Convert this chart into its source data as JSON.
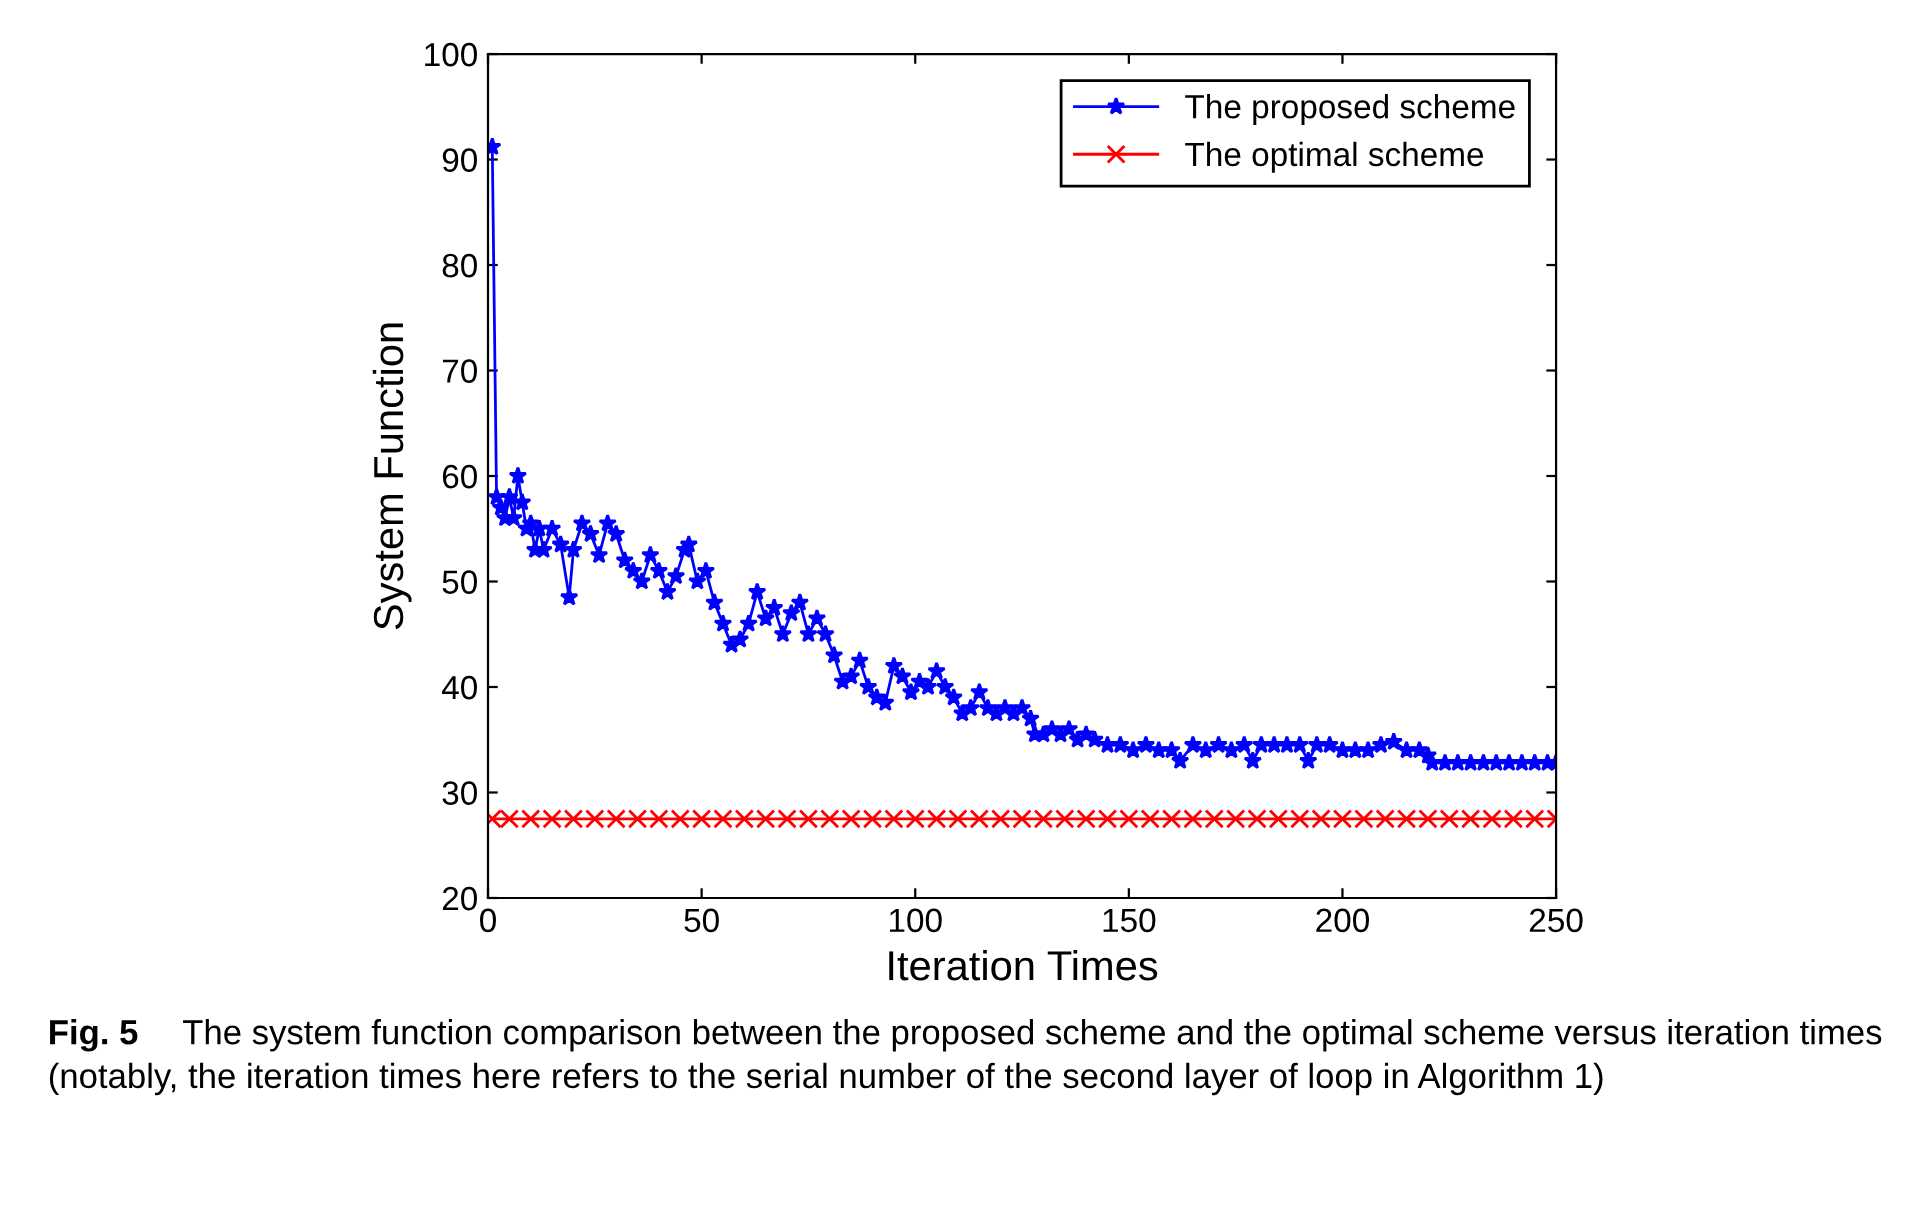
{
  "chart_data": {
    "type": "line",
    "xlabel": "Iteration Times",
    "ylabel": "System Function",
    "xlim": [
      0,
      250
    ],
    "ylim": [
      20,
      100
    ],
    "xticks": [
      0,
      50,
      100,
      150,
      200,
      250
    ],
    "yticks": [
      20,
      30,
      40,
      50,
      60,
      70,
      80,
      90,
      100
    ],
    "grid": false,
    "legend": "top right",
    "annotations": [
      "Fig. 5",
      "The system function comparison between the proposed scheme and the optimal scheme versus iteration times (notably, the iteration times here refers to the serial number of the second layer of loop in Algorithm 1)"
    ],
    "series": [
      {
        "name": "The proposed scheme",
        "color": "#0000ff",
        "marker": "star",
        "x": [
          1,
          2,
          3,
          4,
          5,
          6,
          7,
          8,
          9,
          10,
          11,
          12,
          13,
          15,
          17,
          19,
          20,
          22,
          24,
          26,
          28,
          30,
          32,
          34,
          36,
          38,
          40,
          42,
          44,
          46,
          47,
          49,
          51,
          53,
          55,
          57,
          59,
          61,
          63,
          65,
          67,
          69,
          71,
          73,
          75,
          77,
          79,
          81,
          83,
          85,
          87,
          89,
          91,
          93,
          95,
          97,
          99,
          101,
          103,
          105,
          107,
          109,
          111,
          113,
          115,
          117,
          119,
          121,
          123,
          125,
          127,
          128,
          130,
          132,
          134,
          136,
          138,
          140,
          142,
          145,
          148,
          151,
          154,
          157,
          160,
          162,
          165,
          168,
          171,
          174,
          177,
          179,
          181,
          184,
          187,
          190,
          192,
          194,
          197,
          200,
          203,
          206,
          209,
          212,
          215,
          218,
          220,
          221,
          224,
          227,
          230,
          233,
          236,
          239,
          242,
          245,
          248,
          250
        ],
        "values": [
          91.2,
          58,
          57,
          56,
          58,
          56,
          60,
          57.5,
          55,
          55.5,
          53,
          55,
          53,
          55,
          53.5,
          48.5,
          53,
          55.5,
          54.5,
          52.5,
          55.5,
          54.5,
          52,
          51,
          50,
          52.5,
          51,
          49,
          50.5,
          53,
          53.5,
          50,
          51,
          48,
          46,
          44,
          44.5,
          46,
          49,
          46.5,
          47.5,
          45,
          47,
          48,
          45,
          46.5,
          45,
          43,
          40.5,
          41,
          42.5,
          40,
          39,
          38.5,
          42,
          41,
          39.5,
          40.5,
          40,
          41.5,
          40,
          39,
          37.5,
          38,
          39.5,
          38,
          37.5,
          38,
          37.5,
          38,
          37,
          35.5,
          35.5,
          36,
          35.5,
          36,
          35,
          35.5,
          35,
          34.5,
          34.5,
          34,
          34.5,
          34,
          34,
          33,
          34.5,
          34,
          34.5,
          34,
          34.5,
          33,
          34.5,
          34.5,
          34.5,
          34.5,
          33,
          34.5,
          34.5,
          34,
          34,
          34,
          34.5,
          34.8,
          34,
          34,
          33.5,
          32.8,
          32.8,
          32.8,
          32.8,
          32.8,
          32.8,
          32.8,
          32.8,
          32.8,
          32.8,
          32.8
        ]
      },
      {
        "name": "The optimal scheme",
        "color": "#ff0000",
        "marker": "cross",
        "x": [
          1,
          5,
          10,
          15,
          20,
          25,
          30,
          35,
          40,
          45,
          50,
          55,
          60,
          65,
          70,
          75,
          80,
          85,
          90,
          95,
          100,
          105,
          110,
          115,
          120,
          125,
          130,
          135,
          140,
          145,
          150,
          155,
          160,
          165,
          170,
          175,
          180,
          185,
          190,
          195,
          200,
          205,
          210,
          215,
          220,
          225,
          230,
          235,
          240,
          245,
          250
        ],
        "values": [
          27.5,
          27.5,
          27.5,
          27.5,
          27.5,
          27.5,
          27.5,
          27.5,
          27.5,
          27.5,
          27.5,
          27.5,
          27.5,
          27.5,
          27.5,
          27.5,
          27.5,
          27.5,
          27.5,
          27.5,
          27.5,
          27.5,
          27.5,
          27.5,
          27.5,
          27.5,
          27.5,
          27.5,
          27.5,
          27.5,
          27.5,
          27.5,
          27.5,
          27.5,
          27.5,
          27.5,
          27.5,
          27.5,
          27.5,
          27.5,
          27.5,
          27.5,
          27.5,
          27.5,
          27.5,
          27.5,
          27.5,
          27.5,
          27.5,
          27.5,
          27.5
        ]
      }
    ]
  }
}
